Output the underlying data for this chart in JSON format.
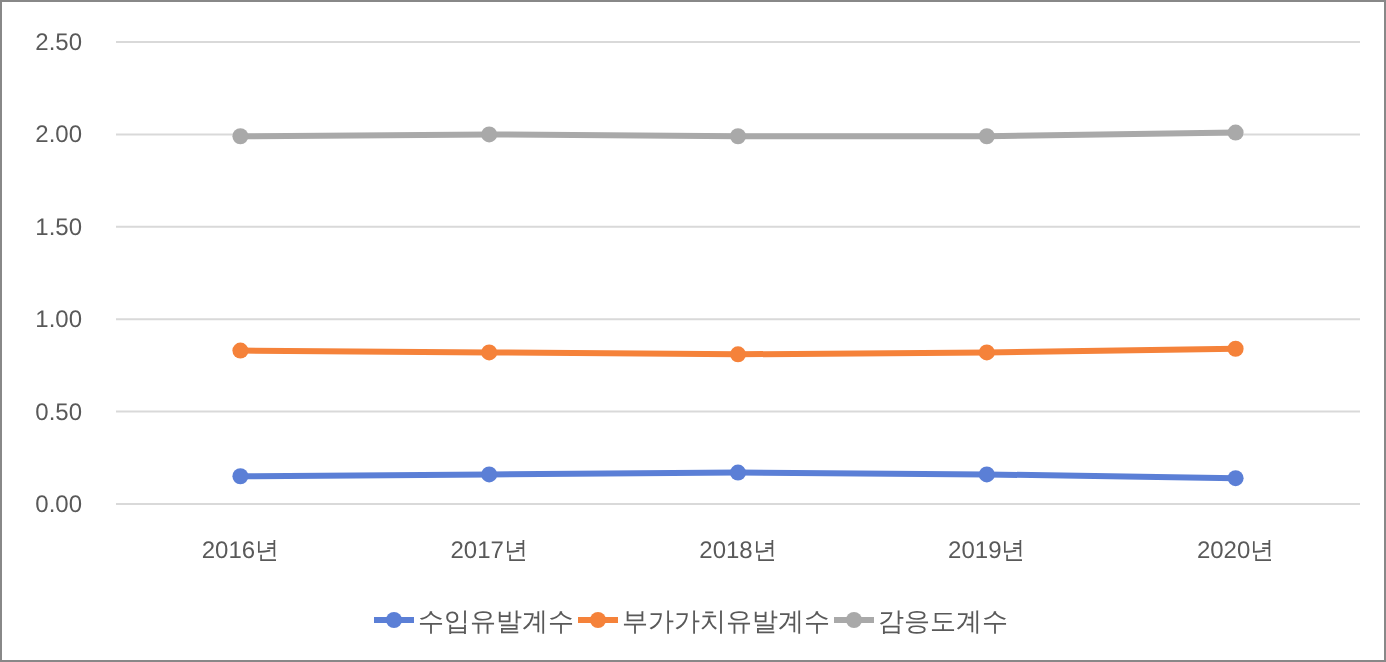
{
  "chart_data": {
    "type": "line",
    "categories": [
      "2016년",
      "2017년",
      "2018년",
      "2019년",
      "2020년"
    ],
    "series": [
      {
        "name": "수입유발계수",
        "color": "#5b7fd6",
        "values": [
          0.15,
          0.16,
          0.17,
          0.16,
          0.14
        ]
      },
      {
        "name": "부가가치유발계수",
        "color": "#f5823a",
        "values": [
          0.83,
          0.82,
          0.81,
          0.82,
          0.84
        ]
      },
      {
        "name": "감응도계수",
        "color": "#a9a9a9",
        "values": [
          1.99,
          2.0,
          1.99,
          1.99,
          2.01
        ]
      }
    ],
    "ylim": [
      0,
      2.5
    ],
    "yticks": [
      {
        "value": 0,
        "label": "0.00"
      },
      {
        "value": 0.5,
        "label": "0.50"
      },
      {
        "value": 1,
        "label": "1.00"
      },
      {
        "value": 1.5,
        "label": "1.50"
      },
      {
        "value": 2,
        "label": "2.00"
      },
      {
        "value": 2.5,
        "label": "2.50"
      }
    ],
    "grid": "y",
    "legend": "bottom",
    "marker": "circle",
    "line_style": "solid"
  }
}
